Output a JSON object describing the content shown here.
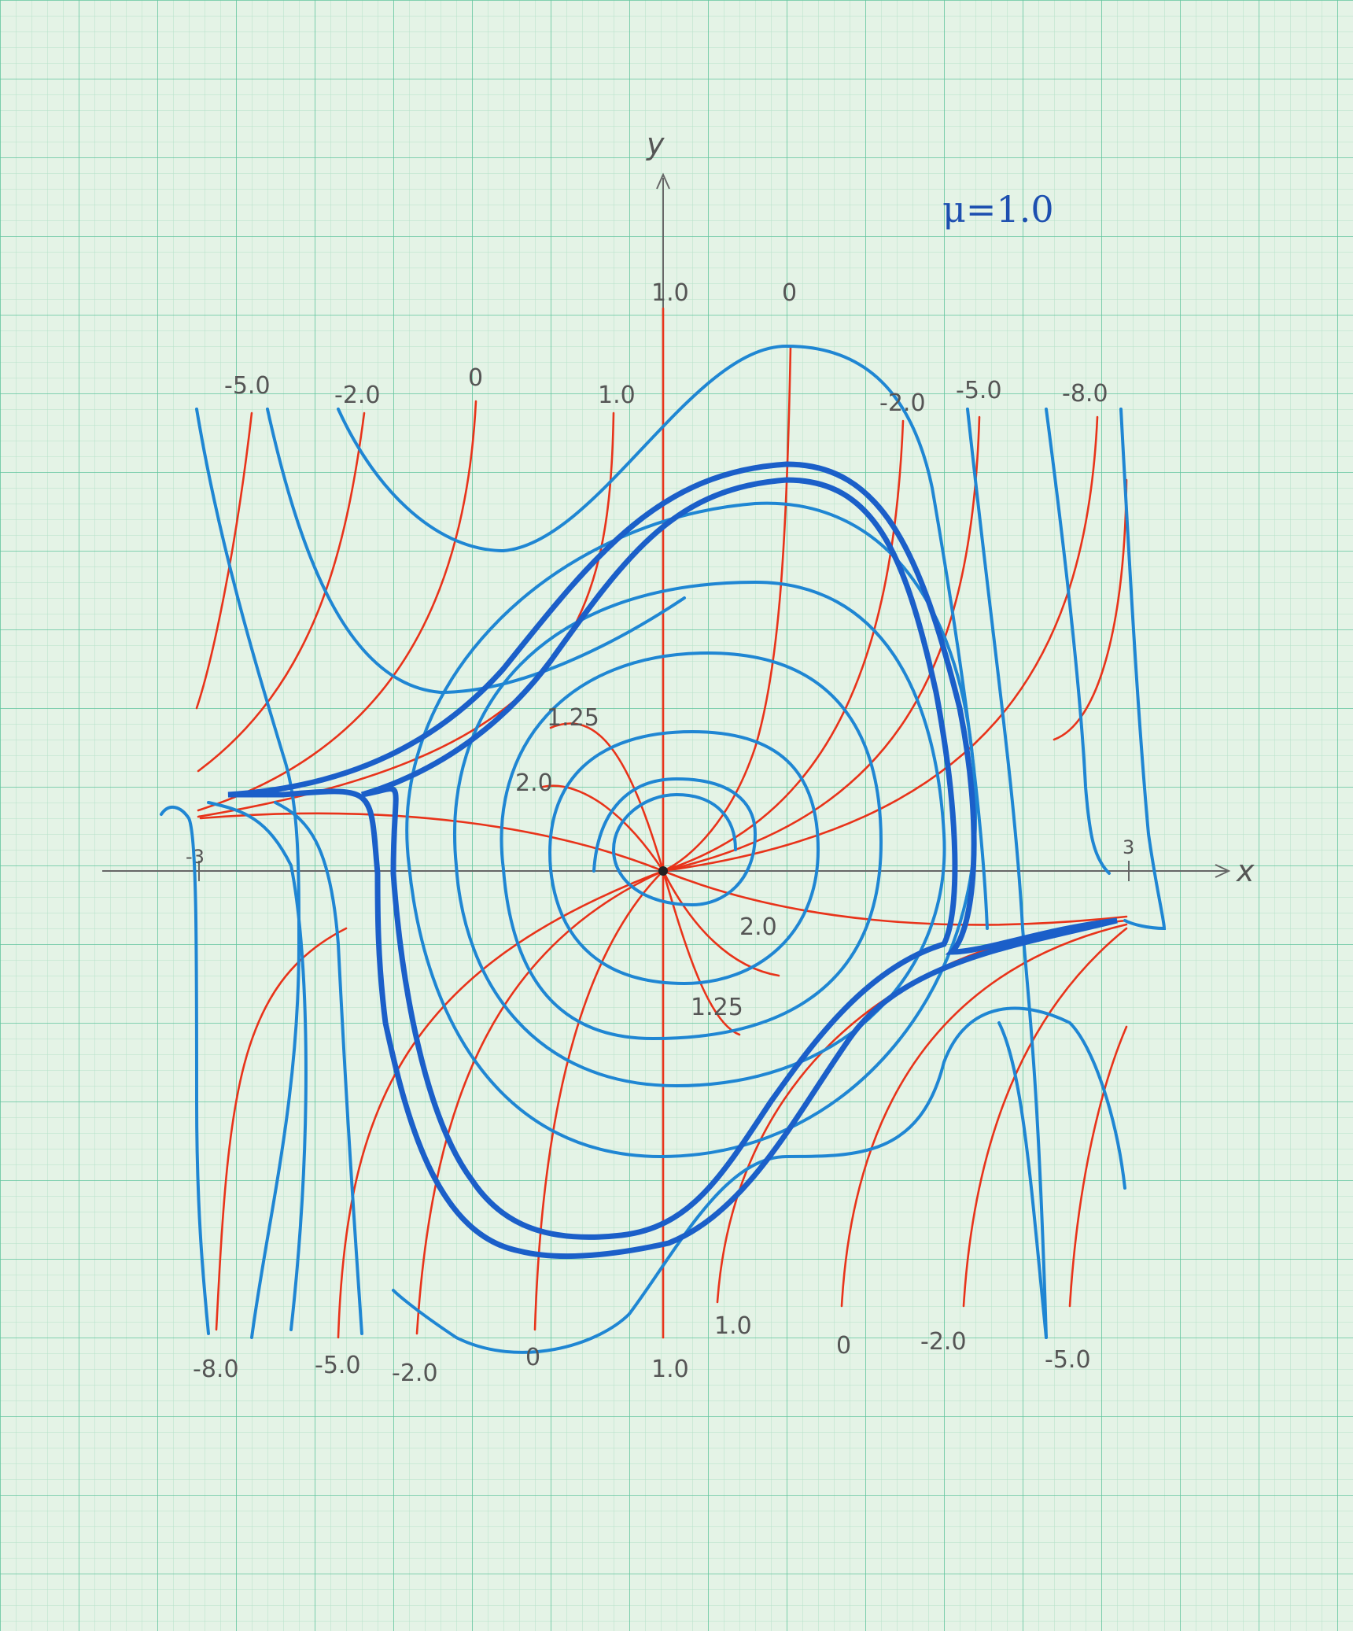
{
  "title": "μ=1.0",
  "axes": {
    "x_label": "x",
    "y_label": "y",
    "x_tick_left": "-3",
    "x_tick_right": "3"
  },
  "colors": {
    "paper": "#e4f3e6",
    "grid_minor": "#a9dcc0",
    "grid_major": "#5cc39a",
    "trajectory": "#1f86d3",
    "limit_cycle": "#1b5fc9",
    "isocline": "#e8331a"
  },
  "labels": {
    "top_isocline": [
      "1.0",
      "0"
    ],
    "upper_slopes": [
      "-5.0",
      "-2.0",
      "0",
      "1.0",
      "-2.0",
      "-5.0",
      "-8.0"
    ],
    "inner_slopes": [
      "1.25",
      "2.0",
      "2.0",
      "1.25"
    ],
    "lower_slopes": [
      "-8.0",
      "-5.0",
      "-2.0",
      "0",
      "1.0",
      "1.0",
      "0",
      "-2.0",
      "-5.0"
    ]
  }
}
